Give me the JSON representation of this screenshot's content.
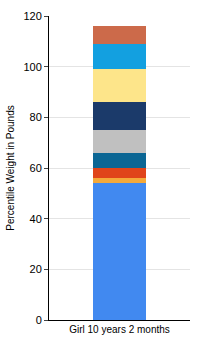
{
  "chart_data": {
    "type": "bar",
    "stacked": true,
    "categories": [
      "Girl 10 years 2 months"
    ],
    "y_label": "Percentile Weight in Pounds",
    "series": [
      {
        "color": "#4189f0",
        "values": [
          54
        ]
      },
      {
        "color": "#f4a93a",
        "values": [
          2
        ]
      },
      {
        "color": "#e0441a",
        "values": [
          4
        ]
      },
      {
        "color": "#0b6694",
        "values": [
          6
        ]
      },
      {
        "color": "#c0c0c0",
        "values": [
          9
        ]
      },
      {
        "color": "#1b3a6a",
        "values": [
          11
        ]
      },
      {
        "color": "#fde58a",
        "values": [
          13
        ]
      },
      {
        "color": "#13a0e0",
        "values": [
          10
        ]
      },
      {
        "color": "#cc6a4a",
        "values": [
          7
        ]
      }
    ],
    "ylim": [
      0,
      120
    ],
    "yticks": [
      0,
      20,
      40,
      60,
      80,
      100,
      120
    ],
    "grid": true
  }
}
